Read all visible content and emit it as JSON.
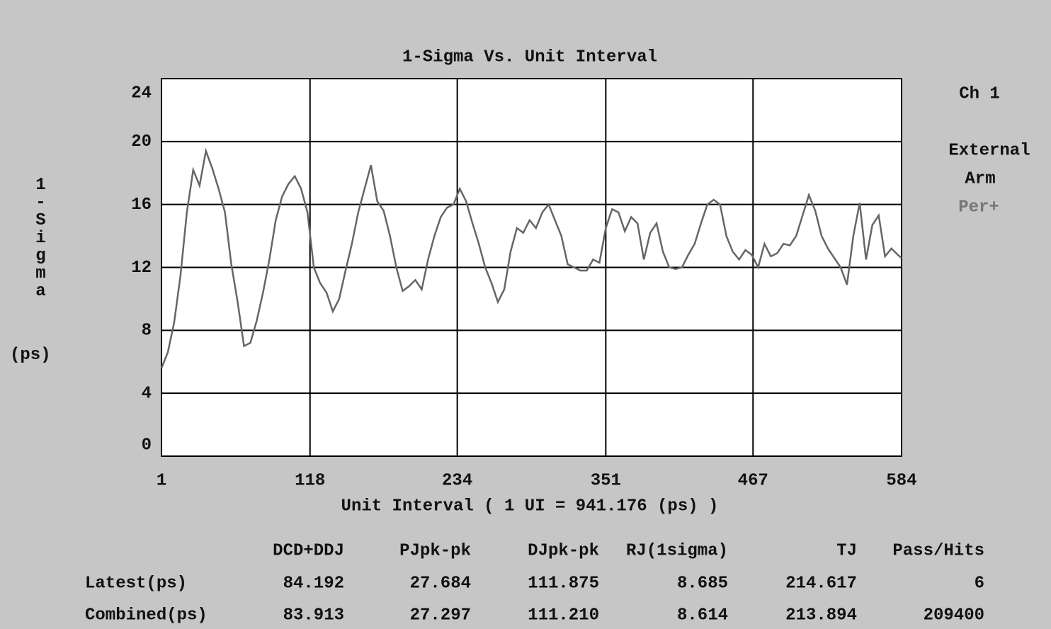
{
  "chart_data": {
    "type": "line",
    "title": "1-Sigma Vs. Unit Interval",
    "x_label": "Unit Interval ( 1 UI = 941.176 (ps) )",
    "y_label": "1-Sigma",
    "y_unit": "(ps)",
    "side_labels": [
      "Ch 1",
      "External",
      "Arm",
      "Per+"
    ],
    "xlim": [
      1,
      584
    ],
    "xticks": [
      1,
      118,
      234,
      351,
      467,
      584
    ],
    "ylim": [
      0,
      24
    ],
    "yticks": [
      0,
      4,
      8,
      12,
      16,
      20,
      24
    ],
    "grid": true,
    "x": [
      1,
      6,
      11,
      16,
      21,
      26,
      31,
      36,
      41,
      46,
      51,
      56,
      61,
      66,
      71,
      76,
      81,
      86,
      91,
      96,
      101,
      106,
      111,
      116,
      121,
      126,
      131,
      136,
      141,
      146,
      151,
      156,
      161,
      166,
      171,
      176,
      181,
      186,
      191,
      196,
      201,
      206,
      211,
      216,
      221,
      226,
      231,
      236,
      241,
      246,
      251,
      256,
      261,
      266,
      271,
      276,
      281,
      286,
      291,
      296,
      301,
      306,
      311,
      316,
      321,
      326,
      331,
      336,
      341,
      346,
      351,
      356,
      361,
      366,
      371,
      376,
      381,
      386,
      391,
      396,
      401,
      406,
      411,
      416,
      421,
      426,
      431,
      436,
      441,
      446,
      451,
      456,
      461,
      466,
      471,
      476,
      481,
      486,
      491,
      496,
      501,
      506,
      511,
      516,
      521,
      526,
      531,
      536,
      541,
      546,
      551,
      556,
      561,
      566,
      571,
      576,
      581,
      584
    ],
    "series": [
      {
        "color": "#666666",
        "values": [
          5.6,
          6.6,
          8.5,
          11.5,
          15.5,
          18.2,
          17.2,
          19.4,
          18.3,
          17.0,
          15.5,
          12.2,
          9.8,
          7.0,
          7.2,
          8.6,
          10.4,
          12.5,
          15.0,
          16.5,
          17.3,
          17.8,
          17.0,
          15.5,
          12.0,
          11.0,
          10.4,
          9.2,
          10.0,
          11.8,
          13.5,
          15.5,
          17.0,
          18.5,
          16.2,
          15.6,
          14.0,
          12.0,
          10.5,
          10.8,
          11.2,
          10.6,
          12.5,
          14.0,
          15.2,
          15.8,
          16.0,
          17.0,
          16.2,
          14.8,
          13.5,
          12.0,
          11.0,
          9.8,
          10.6,
          13.0,
          14.5,
          14.2,
          15.0,
          14.5,
          15.5,
          16.0,
          15.0,
          14.0,
          12.2,
          12.0,
          11.8,
          11.8,
          12.5,
          12.3,
          14.5,
          15.7,
          15.5,
          14.3,
          15.2,
          14.8,
          12.5,
          14.2,
          14.8,
          13.0,
          12.0,
          11.9,
          12.0,
          12.8,
          13.5,
          14.8,
          16.0,
          16.3,
          16.0,
          14.0,
          13.0,
          12.5,
          13.1,
          12.8,
          12.0,
          13.5,
          12.7,
          12.9,
          13.5,
          13.4,
          14.0,
          15.3,
          16.6,
          15.6,
          14.0,
          13.2,
          12.6,
          12.0,
          10.9,
          14.0,
          16.1,
          12.5,
          14.7,
          15.3,
          12.7,
          13.2,
          12.8,
          12.6
        ]
      }
    ],
    "table": {
      "headers": [
        "DCD+DDJ",
        "PJpk-pk",
        "DJpk-pk",
        "RJ(1sigma)",
        "TJ",
        "Pass/Hits"
      ],
      "rows": [
        [
          "Latest(ps)",
          "84.192",
          "27.684",
          "111.875",
          "8.685",
          "214.617",
          "6"
        ],
        [
          "Combined(ps)",
          "83.913",
          "27.297",
          "111.210",
          "8.614",
          "213.894",
          "209400"
        ]
      ]
    }
  }
}
